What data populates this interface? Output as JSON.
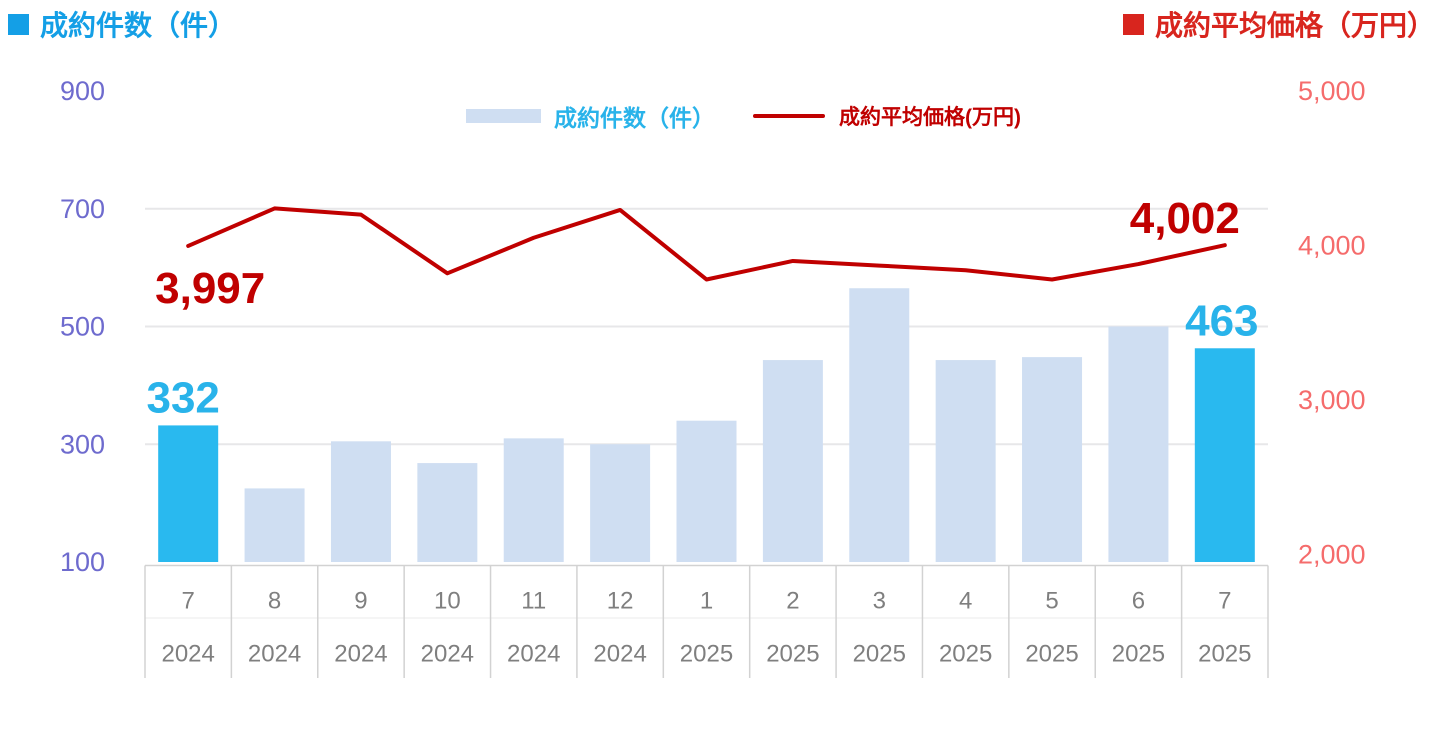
{
  "header": {
    "left_title": "成約件数（件）",
    "right_title": "成約平均価格（万円）"
  },
  "legend": {
    "bar_label": "成約件数（件）",
    "line_label": "成約平均価格(万円)"
  },
  "colors": {
    "bar_default": "#CFDEF2",
    "bar_highlight": "#29B9EF",
    "line": "#C00000",
    "title_blue": "#149FE6",
    "title_red": "#D8251E",
    "label_cyan": "#29B3EA",
    "label_red": "#C00000",
    "left_axis_text": "#6E6BCE",
    "right_axis_text": "#F56C6C",
    "x_axis_text": "#7F7F7F",
    "gridline": "#E7E7E9",
    "cell_border": "#D2D2D2",
    "cell_border_faint": "#F2F2F2"
  },
  "chart_data": {
    "type": "bar+line combo",
    "categories": {
      "months": [
        "7",
        "8",
        "9",
        "10",
        "11",
        "12",
        "1",
        "2",
        "3",
        "4",
        "5",
        "6",
        "7"
      ],
      "years": [
        "2024",
        "2024",
        "2024",
        "2024",
        "2024",
        "2024",
        "2025",
        "2025",
        "2025",
        "2025",
        "2025",
        "2025",
        "2025"
      ]
    },
    "series": [
      {
        "name": "成約件数（件）",
        "type": "bar",
        "axis": "left",
        "values": [
          332,
          225,
          305,
          268,
          310,
          300,
          340,
          443,
          565,
          443,
          448,
          500,
          463
        ],
        "highlight_indices": [
          0,
          12
        ]
      },
      {
        "name": "成約平均価格(万円)",
        "type": "line",
        "axis": "right",
        "values": [
          3997,
          4240,
          4200,
          3820,
          4050,
          4230,
          3780,
          3900,
          3870,
          3840,
          3780,
          3880,
          4002
        ]
      }
    ],
    "left_axis": {
      "label": "成約件数（件）",
      "min": 100,
      "max": 900,
      "ticks": [
        900,
        700,
        500,
        300,
        100
      ]
    },
    "right_axis": {
      "label": "成約平均価格（万円）",
      "min": 2000,
      "max": 5000,
      "ticks": [
        5000,
        4000,
        3000,
        2000
      ]
    },
    "gridlines": [
      700,
      500,
      300
    ],
    "legend_position": "top-center",
    "data_labels": [
      {
        "series": "bar",
        "index": 0,
        "text": "332"
      },
      {
        "series": "bar",
        "index": 12,
        "text": "463"
      },
      {
        "series": "line",
        "index": 0,
        "text": "3,997"
      },
      {
        "series": "line",
        "index": 12,
        "text": "4,002"
      }
    ]
  }
}
